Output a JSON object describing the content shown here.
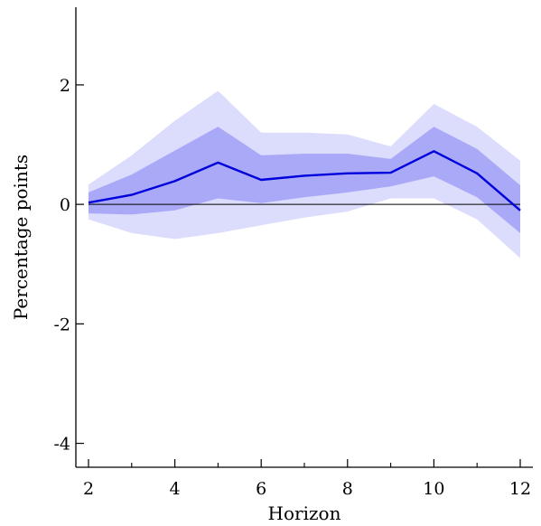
{
  "chart_data": {
    "type": "line",
    "xlabel": "Horizon",
    "ylabel": "Percentage points",
    "xlim": [
      2,
      12
    ],
    "ylim": [
      -4.4,
      3.3
    ],
    "x_ticks": [
      2,
      4,
      6,
      8,
      10,
      12
    ],
    "x_minor_ticks": [
      3,
      5,
      7,
      9,
      11
    ],
    "y_ticks": [
      -4,
      -2,
      0,
      2
    ],
    "y_tick_labels": [
      "-4",
      "-2",
      "0",
      "2"
    ],
    "grid": false,
    "reference_line": 0,
    "x": [
      2,
      3,
      4,
      5,
      6,
      7,
      8,
      9,
      10,
      11,
      12
    ],
    "series": [
      {
        "values": [
          0.03,
          0.16,
          0.39,
          0.7,
          0.41,
          0.48,
          0.52,
          0.53,
          0.89,
          0.52,
          -0.1
        ],
        "color": "#0000dd"
      }
    ],
    "bands": [
      {
        "role": "outer",
        "lower": [
          -0.25,
          -0.48,
          -0.58,
          -0.48,
          -0.35,
          -0.22,
          -0.12,
          0.1,
          0.1,
          -0.25,
          -0.9
        ],
        "upper": [
          0.33,
          0.82,
          1.4,
          1.9,
          1.2,
          1.2,
          1.17,
          0.97,
          1.68,
          1.3,
          0.73
        ],
        "color": "#dcdcfc"
      },
      {
        "role": "inner",
        "lower": [
          -0.15,
          -0.17,
          -0.1,
          0.1,
          0.02,
          0.12,
          0.2,
          0.3,
          0.47,
          0.12,
          -0.48
        ],
        "upper": [
          0.2,
          0.5,
          0.9,
          1.3,
          0.82,
          0.85,
          0.85,
          0.76,
          1.3,
          0.93,
          0.32
        ],
        "color": "#a9a9f8"
      }
    ]
  }
}
